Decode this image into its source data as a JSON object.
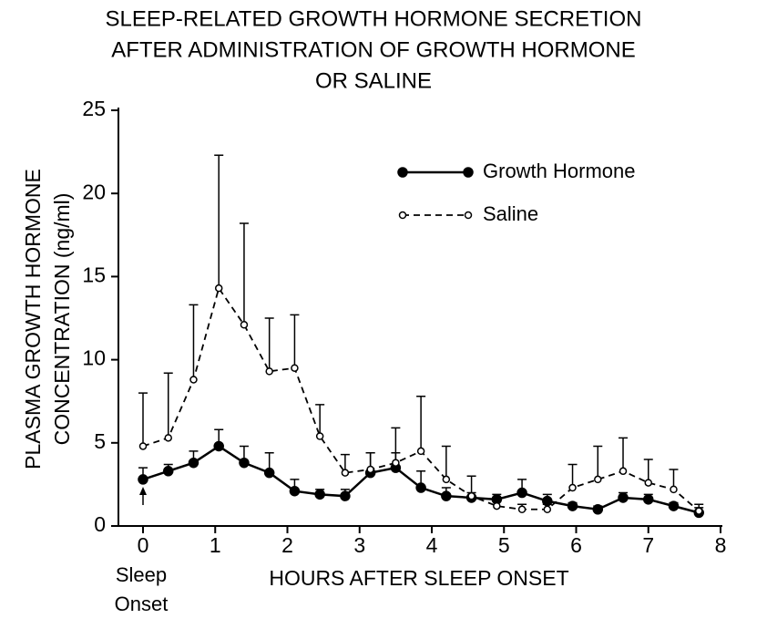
{
  "chart_data": {
    "type": "line",
    "title": [
      "SLEEP-RELATED GROWTH HORMONE SECRETION",
      "AFTER ADMINISTRATION OF GROWTH HORMONE",
      "OR SALINE"
    ],
    "x_label": "HOURS AFTER SLEEP ONSET",
    "y_label": [
      "PLASMA GROWTH HORMONE",
      "CONCENTRATION (ng/ml)"
    ],
    "annotation": [
      "Sleep",
      "Onset"
    ],
    "x": [
      0,
      0.35,
      0.7,
      1.05,
      1.4,
      1.75,
      2.1,
      2.45,
      2.8,
      3.15,
      3.5,
      3.85,
      4.2,
      4.55,
      4.9,
      5.25,
      5.6,
      5.95,
      6.3,
      6.65,
      7.0,
      7.35,
      7.7
    ],
    "series": [
      {
        "name": "Growth Hormone",
        "color": "#000000",
        "marker": "filled",
        "dashed": false,
        "values": [
          2.8,
          3.3,
          3.8,
          4.8,
          3.8,
          3.2,
          2.1,
          1.9,
          1.8,
          3.2,
          3.5,
          2.3,
          1.8,
          1.7,
          1.6,
          2.0,
          1.5,
          1.2,
          1.0,
          1.7,
          1.6,
          1.2,
          0.8
        ],
        "errors": [
          0.7,
          0.4,
          0.7,
          1.0,
          1.0,
          1.2,
          0.7,
          0.3,
          0.4,
          1.2,
          0.9,
          1.0,
          0.5,
          0.3,
          0.3,
          0.8,
          0.4,
          0.2,
          0.2,
          0.3,
          0.3,
          0.2,
          0.3
        ]
      },
      {
        "name": "Saline",
        "color": "#000000",
        "marker": "open",
        "dashed": true,
        "values": [
          4.8,
          5.3,
          8.8,
          14.3,
          12.1,
          9.3,
          9.5,
          5.4,
          3.2,
          3.4,
          3.8,
          4.5,
          2.8,
          1.8,
          1.2,
          1.0,
          1.0,
          2.3,
          2.8,
          3.3,
          2.6,
          2.2,
          0.9
        ],
        "errors": [
          3.2,
          3.9,
          4.5,
          8.0,
          6.1,
          3.2,
          3.2,
          1.9,
          1.1,
          1.0,
          2.1,
          3.3,
          2.0,
          1.2,
          0.5,
          0.3,
          0.3,
          1.4,
          2.0,
          2.0,
          1.4,
          1.2,
          0.4
        ]
      }
    ],
    "xlim": [
      0,
      8
    ],
    "xticks": [
      0,
      1,
      2,
      3,
      4,
      5,
      6,
      7,
      8
    ],
    "ylim": [
      0,
      25
    ],
    "yticks": [
      0,
      5,
      10,
      15,
      20,
      25
    ],
    "grid": false
  }
}
